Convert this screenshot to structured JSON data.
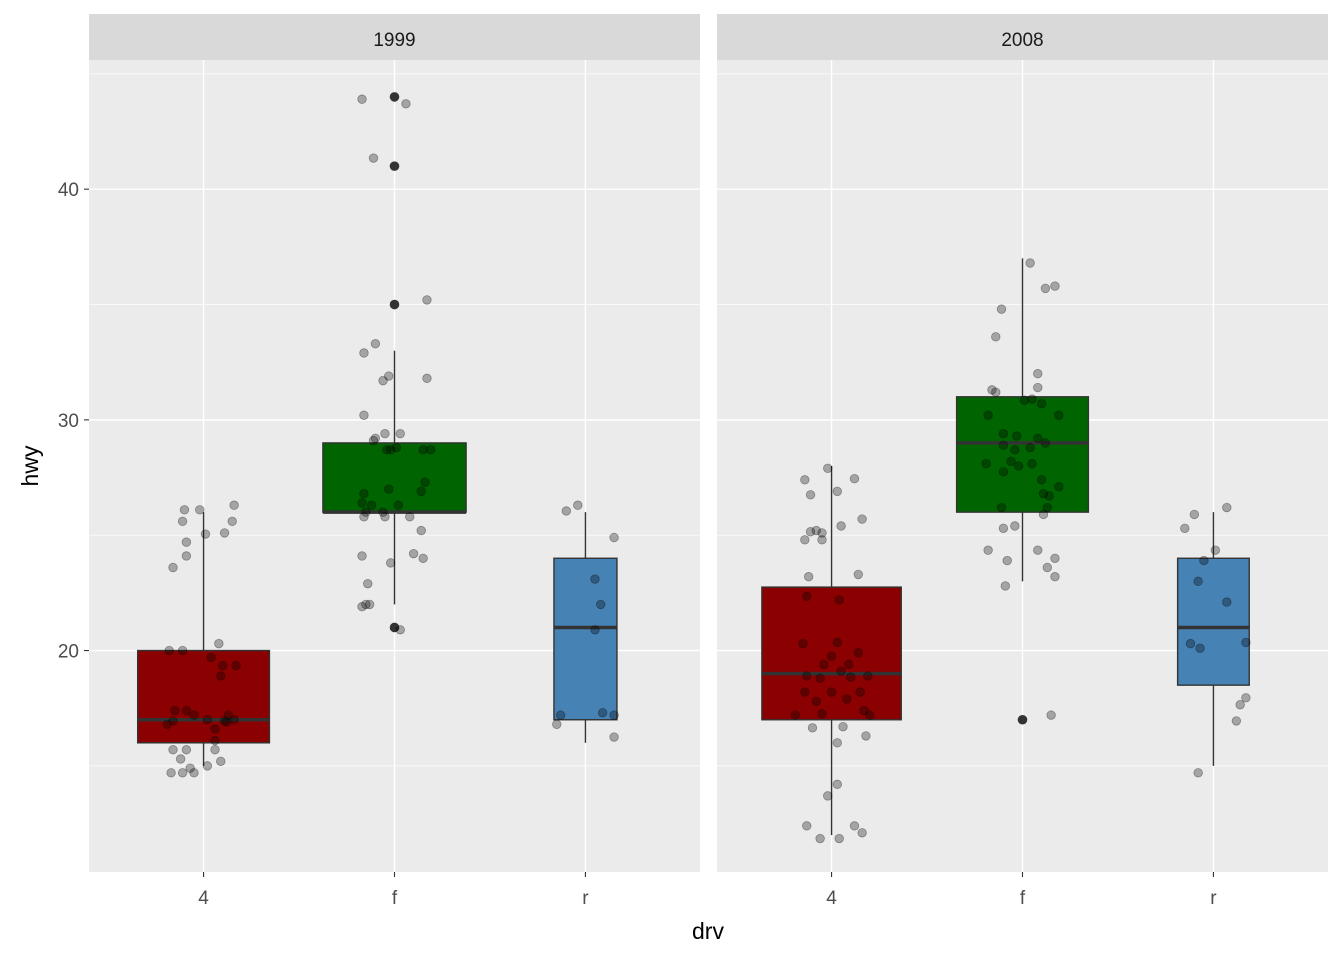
{
  "chart_data": {
    "type": "boxplot",
    "xlabel": "drv",
    "ylabel": "hwy",
    "ylim": [
      10.4,
      45.6
    ],
    "yticks": [
      20,
      30,
      40
    ],
    "categories": [
      "4",
      "f",
      "r"
    ],
    "grid": true,
    "colors": {
      "4": "#8B0000",
      "f": "#006400",
      "r": "#4682B4",
      "panel_bg": "#EBEBEB",
      "strip_bg": "#D9D9D9",
      "point": "#A6A6A6",
      "outlier": "#333333"
    },
    "facets": [
      {
        "label": "1999",
        "boxes": [
          {
            "drv": "4",
            "low": 15,
            "q1": 16,
            "median": 17,
            "q3": 20,
            "high": 26,
            "width": 0.69,
            "outliers": []
          },
          {
            "drv": "f",
            "low": 22,
            "q1": 26,
            "median": 26,
            "q3": 29,
            "high": 33,
            "width": 0.75,
            "outliers": [
              44,
              41,
              35,
              21
            ]
          },
          {
            "drv": "r",
            "low": 16,
            "q1": 17,
            "median": 21,
            "q3": 24,
            "high": 26,
            "width": 0.33,
            "outliers": []
          }
        ],
        "points": {
          "4": [
            [
              -0.1,
              26.1
            ],
            [
              -0.02,
              26.1
            ],
            [
              -0.11,
              25.6
            ],
            [
              0.16,
              26.3
            ],
            [
              0.15,
              25.6
            ],
            [
              0.01,
              25.05
            ],
            [
              0.11,
              25.1
            ],
            [
              -0.09,
              24.7
            ],
            [
              -0.09,
              24.1
            ],
            [
              -0.16,
              23.6
            ],
            [
              0.08,
              20.3
            ],
            [
              -0.18,
              20.0
            ],
            [
              -0.11,
              20.0
            ],
            [
              0.04,
              19.7
            ],
            [
              0.1,
              19.35
            ],
            [
              0.17,
              19.35
            ],
            [
              0.09,
              18.9
            ],
            [
              -0.15,
              17.4
            ],
            [
              -0.09,
              17.4
            ],
            [
              -0.05,
              17.2
            ],
            [
              0.02,
              17.0
            ],
            [
              0.13,
              17.2
            ],
            [
              0.16,
              17.0
            ],
            [
              -0.19,
              16.8
            ],
            [
              -0.16,
              16.95
            ],
            [
              0.11,
              16.95
            ],
            [
              0.06,
              16.6
            ],
            [
              0.12,
              16.9
            ],
            [
              0.06,
              16.1
            ],
            [
              -0.16,
              15.7
            ],
            [
              -0.09,
              15.7
            ],
            [
              0.06,
              15.7
            ],
            [
              -0.12,
              15.3
            ],
            [
              0.09,
              15.2
            ],
            [
              0.02,
              15.0
            ],
            [
              -0.07,
              14.9
            ],
            [
              -0.17,
              14.7
            ],
            [
              -0.11,
              14.7
            ],
            [
              -0.05,
              14.7
            ]
          ],
          "f": [
            [
              -0.17,
              43.9
            ],
            [
              0.06,
              43.7
            ],
            [
              -0.11,
              41.35
            ],
            [
              0.17,
              35.2
            ],
            [
              -0.1,
              33.3
            ],
            [
              -0.16,
              32.9
            ],
            [
              -0.03,
              31.9
            ],
            [
              -0.06,
              31.7
            ],
            [
              0.17,
              31.8
            ],
            [
              -0.16,
              30.2
            ],
            [
              -0.1,
              29.2
            ],
            [
              -0.11,
              29.1
            ],
            [
              -0.05,
              29.4
            ],
            [
              0.03,
              29.4
            ],
            [
              -0.04,
              28.7
            ],
            [
              -0.02,
              28.7
            ],
            [
              0.01,
              28.8
            ],
            [
              0.15,
              28.7
            ],
            [
              0.19,
              28.7
            ],
            [
              -0.16,
              26.8
            ],
            [
              0.16,
              27.3
            ],
            [
              0.14,
              26.9
            ],
            [
              -0.03,
              27.0
            ],
            [
              -0.17,
              26.4
            ],
            [
              -0.12,
              26.3
            ],
            [
              -0.15,
              26.0
            ],
            [
              -0.06,
              26.0
            ],
            [
              0.02,
              26.3
            ],
            [
              0.08,
              25.8
            ],
            [
              -0.05,
              25.8
            ],
            [
              -0.16,
              25.8
            ],
            [
              0.14,
              25.2
            ],
            [
              -0.17,
              24.1
            ],
            [
              0.1,
              24.2
            ],
            [
              0.15,
              24.0
            ],
            [
              -0.02,
              23.8
            ],
            [
              -0.14,
              22.9
            ],
            [
              -0.15,
              22.0
            ],
            [
              -0.17,
              21.9
            ],
            [
              -0.13,
              22.0
            ],
            [
              0.03,
              20.9
            ]
          ],
          "r": [
            [
              -0.1,
              26.05
            ],
            [
              -0.04,
              26.3
            ],
            [
              0.15,
              24.9
            ],
            [
              0.05,
              23.1
            ],
            [
              0.08,
              22.0
            ],
            [
              0.05,
              20.9
            ],
            [
              -0.13,
              17.2
            ],
            [
              0.09,
              17.3
            ],
            [
              0.15,
              17.2
            ],
            [
              -0.15,
              16.8
            ],
            [
              0.15,
              16.25
            ]
          ]
        }
      },
      {
        "label": "2008",
        "boxes": [
          {
            "drv": "4",
            "low": 12,
            "q1": 17,
            "median": 19,
            "q3": 22.75,
            "high": 28,
            "width": 0.73,
            "outliers": []
          },
          {
            "drv": "f",
            "low": 23,
            "q1": 26,
            "median": 29,
            "q3": 31,
            "high": 37,
            "width": 0.69,
            "outliers": [
              17
            ]
          },
          {
            "drv": "r",
            "low": 15,
            "q1": 18.5,
            "median": 21,
            "q3": 24,
            "high": 26,
            "width": 0.375,
            "outliers": []
          }
        ],
        "points": {
          "4": [
            [
              -0.14,
              27.4
            ],
            [
              -0.02,
              27.9
            ],
            [
              0.12,
              27.45
            ],
            [
              -0.11,
              26.75
            ],
            [
              0.03,
              26.9
            ],
            [
              0.16,
              25.7
            ],
            [
              -0.11,
              25.15
            ],
            [
              -0.08,
              25.2
            ],
            [
              -0.05,
              25.1
            ],
            [
              0.05,
              25.4
            ],
            [
              -0.14,
              24.8
            ],
            [
              -0.05,
              24.8
            ],
            [
              -0.12,
              23.2
            ],
            [
              0.14,
              23.3
            ],
            [
              -0.13,
              22.35
            ],
            [
              0.04,
              22.2
            ],
            [
              -0.15,
              20.3
            ],
            [
              0.03,
              20.35
            ],
            [
              0.14,
              19.9
            ],
            [
              0.0,
              19.75
            ],
            [
              -0.04,
              19.4
            ],
            [
              0.09,
              19.4
            ],
            [
              -0.13,
              18.9
            ],
            [
              -0.06,
              18.8
            ],
            [
              0.05,
              19.1
            ],
            [
              0.1,
              18.85
            ],
            [
              0.19,
              18.9
            ],
            [
              -0.14,
              18.2
            ],
            [
              -0.08,
              17.8
            ],
            [
              0.0,
              18.2
            ],
            [
              0.08,
              17.9
            ],
            [
              0.15,
              18.2
            ],
            [
              -0.19,
              17.2
            ],
            [
              -0.05,
              17.25
            ],
            [
              0.17,
              17.4
            ],
            [
              0.2,
              17.2
            ],
            [
              -0.1,
              16.65
            ],
            [
              0.06,
              16.7
            ],
            [
              0.18,
              16.3
            ],
            [
              0.03,
              16.0
            ],
            [
              0.03,
              14.2
            ],
            [
              -0.02,
              13.7
            ],
            [
              -0.13,
              12.4
            ],
            [
              0.12,
              12.4
            ],
            [
              -0.06,
              11.85
            ],
            [
              0.04,
              11.85
            ],
            [
              0.16,
              12.1
            ]
          ],
          "f": [
            [
              0.04,
              36.8
            ],
            [
              0.17,
              35.8
            ],
            [
              0.12,
              35.7
            ],
            [
              -0.11,
              34.8
            ],
            [
              -0.14,
              33.6
            ],
            [
              0.08,
              32.0
            ],
            [
              0.08,
              31.4
            ],
            [
              -0.16,
              31.3
            ],
            [
              -0.14,
              31.2
            ],
            [
              0.01,
              30.85
            ],
            [
              0.05,
              30.9
            ],
            [
              0.19,
              30.2
            ],
            [
              -0.18,
              30.2
            ],
            [
              0.1,
              30.7
            ],
            [
              -0.1,
              29.4
            ],
            [
              -0.03,
              29.3
            ],
            [
              0.08,
              29.2
            ],
            [
              0.12,
              29.0
            ],
            [
              -0.1,
              28.9
            ],
            [
              -0.04,
              28.7
            ],
            [
              0.04,
              28.8
            ],
            [
              -0.19,
              28.1
            ],
            [
              -0.06,
              28.2
            ],
            [
              -0.02,
              28.0
            ],
            [
              0.05,
              28.1
            ],
            [
              -0.1,
              27.75
            ],
            [
              0.1,
              27.4
            ],
            [
              0.19,
              27.1
            ],
            [
              0.11,
              26.8
            ],
            [
              0.14,
              26.7
            ],
            [
              -0.11,
              26.2
            ],
            [
              0.13,
              26.2
            ],
            [
              0.11,
              25.9
            ],
            [
              -0.1,
              25.3
            ],
            [
              -0.04,
              25.4
            ],
            [
              -0.18,
              24.35
            ],
            [
              0.08,
              24.35
            ],
            [
              0.17,
              24.0
            ],
            [
              0.13,
              23.6
            ],
            [
              -0.08,
              23.9
            ],
            [
              0.17,
              23.2
            ],
            [
              -0.09,
              22.8
            ],
            [
              0.15,
              17.2
            ]
          ],
          "r": [
            [
              0.07,
              26.2
            ],
            [
              -0.1,
              25.9
            ],
            [
              -0.15,
              25.3
            ],
            [
              0.01,
              24.35
            ],
            [
              -0.05,
              23.9
            ],
            [
              -0.08,
              23.0
            ],
            [
              0.07,
              22.1
            ],
            [
              -0.12,
              20.3
            ],
            [
              -0.07,
              20.1
            ],
            [
              0.17,
              20.35
            ],
            [
              0.17,
              17.95
            ],
            [
              0.14,
              17.65
            ],
            [
              0.12,
              16.95
            ],
            [
              -0.08,
              14.7
            ]
          ]
        }
      }
    ]
  }
}
